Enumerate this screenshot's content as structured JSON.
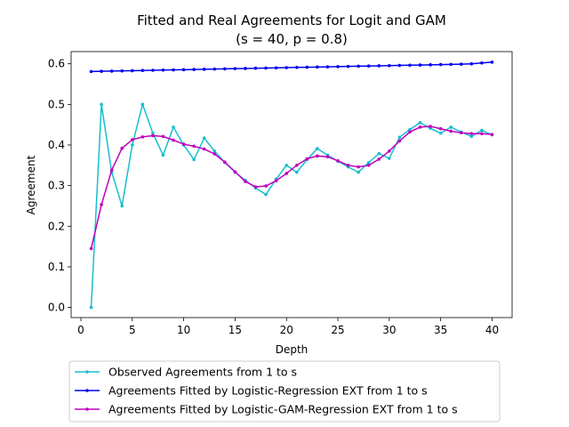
{
  "chart_data": {
    "type": "line",
    "title_line1": "Fitted and Real Agreements for Logit and GAM",
    "title_line2": "(s = 40, p = 0.8)",
    "xlabel": "Depth",
    "ylabel": "Agreement",
    "xlim": [
      -0.95,
      41.95
    ],
    "ylim": [
      -0.025,
      0.63
    ],
    "xticks": [
      0,
      5,
      10,
      15,
      20,
      25,
      30,
      35,
      40
    ],
    "yticks": [
      0.0,
      0.1,
      0.2,
      0.3,
      0.4,
      0.5,
      0.6
    ],
    "ytick_labels": [
      "0.0",
      "0.1",
      "0.2",
      "0.3",
      "0.4",
      "0.5",
      "0.6"
    ],
    "grid": false,
    "legend_placement": "below",
    "x": [
      1,
      2,
      3,
      4,
      5,
      6,
      7,
      8,
      9,
      10,
      11,
      12,
      13,
      14,
      15,
      16,
      17,
      18,
      19,
      20,
      21,
      22,
      23,
      24,
      25,
      26,
      27,
      28,
      29,
      30,
      31,
      32,
      33,
      34,
      35,
      36,
      37,
      38,
      39,
      40
    ],
    "series": [
      {
        "name": "Observed Agreements from 1 to s",
        "color": "#17becf",
        "values": [
          0.0,
          0.5,
          0.333,
          0.25,
          0.4,
          0.5,
          0.429,
          0.375,
          0.444,
          0.4,
          0.364,
          0.417,
          0.385,
          0.357,
          0.333,
          0.313,
          0.294,
          0.278,
          0.316,
          0.35,
          0.333,
          0.364,
          0.391,
          0.375,
          0.36,
          0.346,
          0.333,
          0.357,
          0.379,
          0.367,
          0.419,
          0.438,
          0.455,
          0.441,
          0.429,
          0.444,
          0.432,
          0.421,
          0.436,
          0.425
        ]
      },
      {
        "name": "Agreements Fitted by Logistic-Regression EXT from 1 to s",
        "color": "#0000ee",
        "values": [
          0.581,
          0.5815,
          0.582,
          0.5825,
          0.583,
          0.5835,
          0.584,
          0.5845,
          0.585,
          0.5855,
          0.586,
          0.5865,
          0.587,
          0.5875,
          0.588,
          0.5885,
          0.589,
          0.5895,
          0.59,
          0.5905,
          0.591,
          0.5915,
          0.592,
          0.5925,
          0.593,
          0.5935,
          0.594,
          0.5945,
          0.595,
          0.5955,
          0.596,
          0.5965,
          0.597,
          0.5975,
          0.598,
          0.5985,
          0.599,
          0.6,
          0.602,
          0.604
        ]
      },
      {
        "name": "Agreements Fitted by Logistic-GAM-Regression EXT from 1 to s",
        "color": "#bf00bf",
        "values": [
          0.145,
          0.253,
          0.338,
          0.392,
          0.413,
          0.42,
          0.423,
          0.421,
          0.412,
          0.402,
          0.397,
          0.39,
          0.378,
          0.358,
          0.334,
          0.31,
          0.297,
          0.299,
          0.312,
          0.33,
          0.35,
          0.366,
          0.373,
          0.371,
          0.361,
          0.35,
          0.346,
          0.35,
          0.365,
          0.385,
          0.41,
          0.432,
          0.444,
          0.446,
          0.44,
          0.434,
          0.43,
          0.428,
          0.428,
          0.426
        ]
      }
    ]
  }
}
